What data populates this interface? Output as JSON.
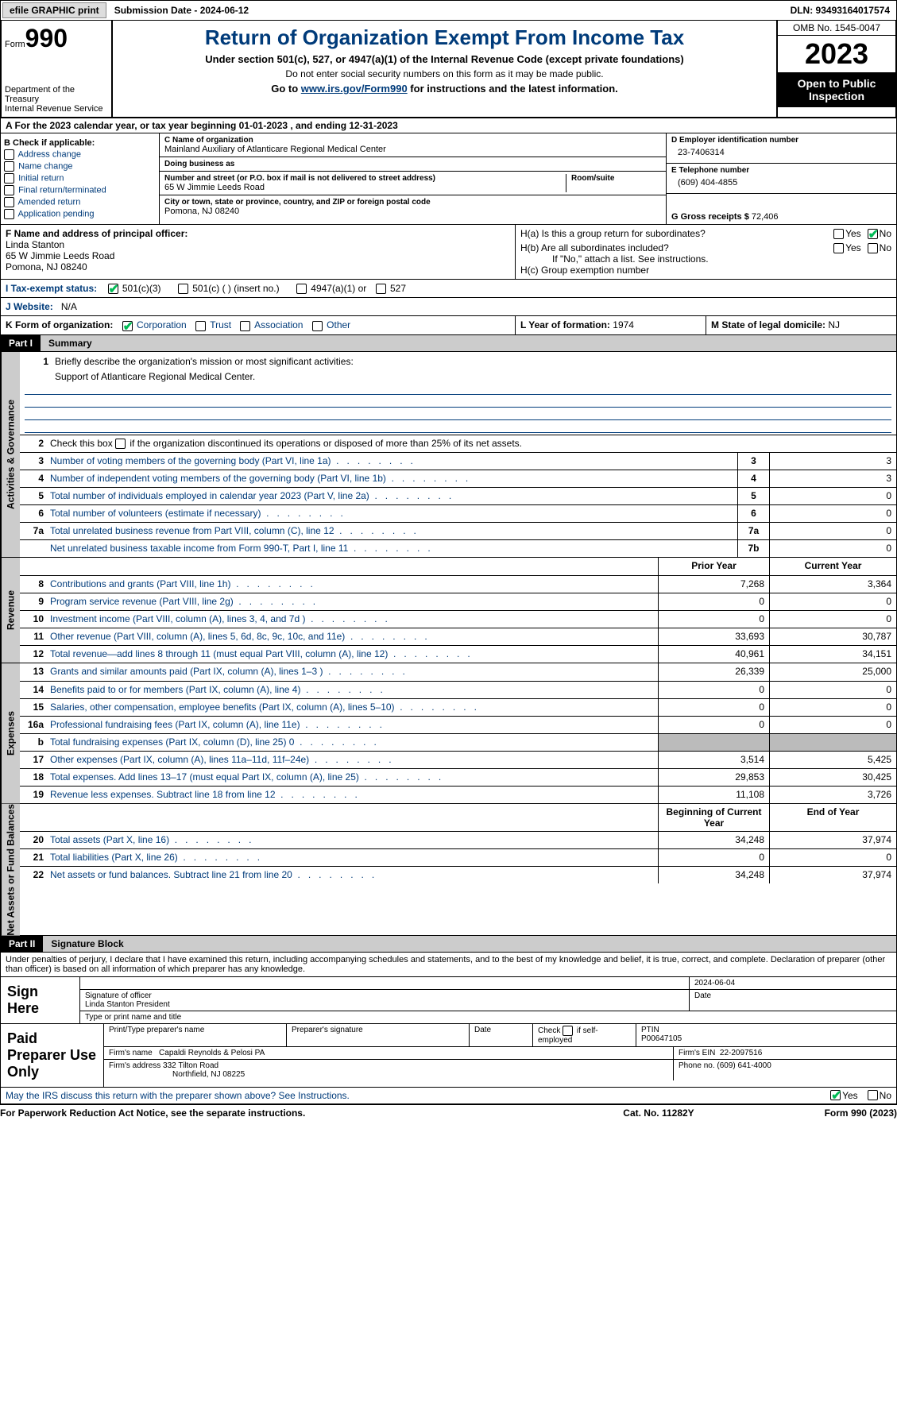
{
  "top": {
    "efile": "efile GRAPHIC print",
    "submission": "Submission Date - 2024-06-12",
    "dln": "DLN: 93493164017574"
  },
  "header": {
    "form_prefix": "Form",
    "form_num": "990",
    "title": "Return of Organization Exempt From Income Tax",
    "subtitle": "Under section 501(c), 527, or 4947(a)(1) of the Internal Revenue Code (except private foundations)",
    "note": "Do not enter social security numbers on this form as it may be made public.",
    "goto_prefix": "Go to ",
    "goto_link": "www.irs.gov/Form990",
    "goto_suffix": " for instructions and the latest information.",
    "dept": "Department of the Treasury\nInternal Revenue Service",
    "omb": "OMB No. 1545-0047",
    "year": "2023",
    "open": "Open to Public Inspection"
  },
  "a": "A For the 2023 calendar year, or tax year beginning 01-01-2023   , and ending 12-31-2023",
  "b": {
    "header": "B Check if applicable:",
    "items": [
      "Address change",
      "Name change",
      "Initial return",
      "Final return/terminated",
      "Amended return",
      "Application pending"
    ]
  },
  "c": {
    "name_lbl": "C Name of organization",
    "name": "Mainland Auxiliary of Atlanticare Regional Medical Center",
    "dba_lbl": "Doing business as",
    "dba": "",
    "street_lbl": "Number and street (or P.O. box if mail is not delivered to street address)",
    "street": "65 W Jimmie Leeds Road",
    "room_lbl": "Room/suite",
    "city_lbl": "City or town, state or province, country, and ZIP or foreign postal code",
    "city": "Pomona, NJ  08240"
  },
  "d": {
    "lbl": "D Employer identification number",
    "val": "23-7406314"
  },
  "e": {
    "lbl": "E Telephone number",
    "val": "(609) 404-4855"
  },
  "g": {
    "lbl": "G Gross receipts $",
    "val": "72,406"
  },
  "f": {
    "lbl": "F  Name and address of principal officer:",
    "name": "Linda Stanton",
    "street": "65 W Jimmie Leeds Road",
    "city": "Pomona, NJ  08240"
  },
  "h": {
    "a": "H(a)  Is this a group return for subordinates?",
    "b": "H(b)  Are all subordinates included?",
    "b_note": "If \"No,\" attach a list. See instructions.",
    "c": "H(c)  Group exemption number"
  },
  "i": {
    "lbl": "I   Tax-exempt status:",
    "opts": [
      "501(c)(3)",
      "501(c) (  ) (insert no.)",
      "4947(a)(1) or",
      "527"
    ]
  },
  "j": {
    "lbl": "J   Website:",
    "val": "N/A"
  },
  "k": {
    "lbl": "K Form of organization:",
    "opts": [
      "Corporation",
      "Trust",
      "Association",
      "Other"
    ]
  },
  "l": {
    "lbl": "L Year of formation:",
    "val": "1974"
  },
  "m": {
    "lbl": "M State of legal domicile:",
    "val": "NJ"
  },
  "part1": {
    "label": "Part I",
    "title": "Summary",
    "sections": [
      {
        "vtab": "Activities & Governance",
        "mission_q": "Briefly describe the organization's mission or most significant activities:",
        "mission": "Support of Atlanticare Regional Medical Center.",
        "line2": "Check this box      if the organization discontinued its operations or disposed of more than 25% of its net assets.",
        "lines": [
          {
            "n": "3",
            "t": "Number of voting members of the governing body (Part VI, line 1a)",
            "box": "3",
            "v": "3"
          },
          {
            "n": "4",
            "t": "Number of independent voting members of the governing body (Part VI, line 1b)",
            "box": "4",
            "v": "3"
          },
          {
            "n": "5",
            "t": "Total number of individuals employed in calendar year 2023 (Part V, line 2a)",
            "box": "5",
            "v": "0"
          },
          {
            "n": "6",
            "t": "Total number of volunteers (estimate if necessary)",
            "box": "6",
            "v": "0"
          },
          {
            "n": "7a",
            "t": "Total unrelated business revenue from Part VIII, column (C), line 12",
            "box": "7a",
            "v": "0"
          },
          {
            "n": "",
            "t": "Net unrelated business taxable income from Form 990-T, Part I, line 11",
            "box": "7b",
            "v": "0"
          }
        ]
      },
      {
        "vtab": "Revenue",
        "head": {
          "c1": "Prior Year",
          "c2": "Current Year"
        },
        "lines": [
          {
            "n": "8",
            "t": "Contributions and grants (Part VIII, line 1h)",
            "v1": "7,268",
            "v2": "3,364"
          },
          {
            "n": "9",
            "t": "Program service revenue (Part VIII, line 2g)",
            "v1": "0",
            "v2": "0"
          },
          {
            "n": "10",
            "t": "Investment income (Part VIII, column (A), lines 3, 4, and 7d )",
            "v1": "0",
            "v2": "0"
          },
          {
            "n": "11",
            "t": "Other revenue (Part VIII, column (A), lines 5, 6d, 8c, 9c, 10c, and 11e)",
            "v1": "33,693",
            "v2": "30,787"
          },
          {
            "n": "12",
            "t": "Total revenue—add lines 8 through 11 (must equal Part VIII, column (A), line 12)",
            "v1": "40,961",
            "v2": "34,151"
          }
        ]
      },
      {
        "vtab": "Expenses",
        "lines": [
          {
            "n": "13",
            "t": "Grants and similar amounts paid (Part IX, column (A), lines 1–3 )",
            "v1": "26,339",
            "v2": "25,000"
          },
          {
            "n": "14",
            "t": "Benefits paid to or for members (Part IX, column (A), line 4)",
            "v1": "0",
            "v2": "0"
          },
          {
            "n": "15",
            "t": "Salaries, other compensation, employee benefits (Part IX, column (A), lines 5–10)",
            "v1": "0",
            "v2": "0"
          },
          {
            "n": "16a",
            "t": "Professional fundraising fees (Part IX, column (A), line 11e)",
            "v1": "0",
            "v2": "0"
          },
          {
            "n": "b",
            "t": "Total fundraising expenses (Part IX, column (D), line 25) 0",
            "v1": "",
            "v2": "",
            "shade": true
          },
          {
            "n": "17",
            "t": "Other expenses (Part IX, column (A), lines 11a–11d, 11f–24e)",
            "v1": "3,514",
            "v2": "5,425"
          },
          {
            "n": "18",
            "t": "Total expenses. Add lines 13–17 (must equal Part IX, column (A), line 25)",
            "v1": "29,853",
            "v2": "30,425"
          },
          {
            "n": "19",
            "t": "Revenue less expenses. Subtract line 18 from line 12",
            "v1": "11,108",
            "v2": "3,726"
          }
        ]
      },
      {
        "vtab": "Net Assets or Fund Balances",
        "head": {
          "c1": "Beginning of Current Year",
          "c2": "End of Year"
        },
        "lines": [
          {
            "n": "20",
            "t": "Total assets (Part X, line 16)",
            "v1": "34,248",
            "v2": "37,974"
          },
          {
            "n": "21",
            "t": "Total liabilities (Part X, line 26)",
            "v1": "0",
            "v2": "0"
          },
          {
            "n": "22",
            "t": "Net assets or fund balances. Subtract line 21 from line 20",
            "v1": "34,248",
            "v2": "37,974"
          }
        ]
      }
    ]
  },
  "part2": {
    "label": "Part II",
    "title": "Signature Block",
    "perjury": "Under penalties of perjury, I declare that I have examined this return, including accompanying schedules and statements, and to the best of my knowledge and belief, it is true, correct, and complete. Declaration of preparer (other than officer) is based on all information of which preparer has any knowledge."
  },
  "sign": {
    "lbl": "Sign Here",
    "date": "2024-06-04",
    "sig_lbl": "Signature of officer",
    "name": "Linda Stanton  President",
    "type_lbl": "Type or print name and title",
    "date_lbl": "Date"
  },
  "paid": {
    "lbl": "Paid Preparer Use Only",
    "h": [
      "Print/Type preparer's name",
      "Preparer's signature",
      "Date",
      "Check       if self-employed",
      "PTIN"
    ],
    "ptin": "P00647105",
    "firm_lbl": "Firm's name",
    "firm": "Capaldi Reynolds & Pelosi PA",
    "ein_lbl": "Firm's EIN",
    "ein": "22-2097516",
    "addr_lbl": "Firm's address",
    "addr1": "332 Tilton Road",
    "addr2": "Northfield, NJ  08225",
    "phone_lbl": "Phone no.",
    "phone": "(609) 641-4000"
  },
  "discuss": "May the IRS discuss this return with the preparer shown above? See Instructions.",
  "footer": {
    "l": "For Paperwork Reduction Act Notice, see the separate instructions.",
    "m": "Cat. No. 11282Y",
    "r_prefix": "Form ",
    "r_form": "990",
    "r_suffix": " (2023)"
  }
}
